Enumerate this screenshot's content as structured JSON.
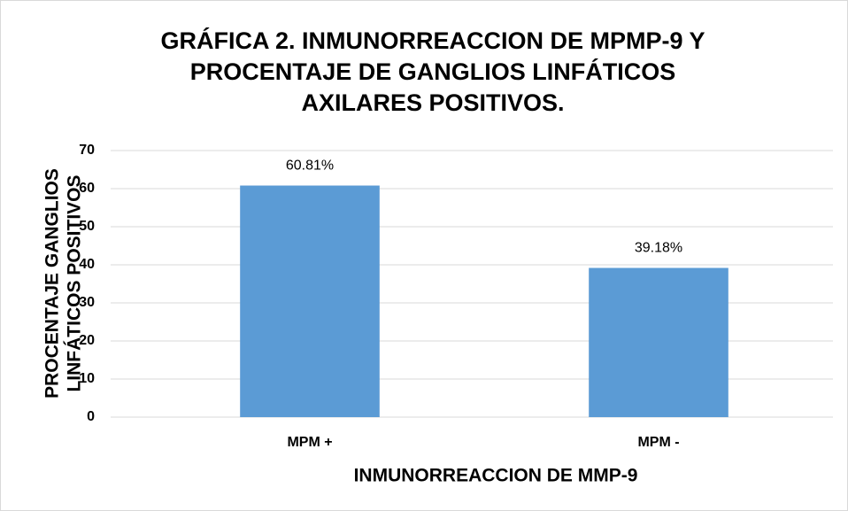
{
  "chart_data": {
    "type": "bar",
    "title": [
      "GRÁFICA 2. INMUNORREACCION DE MPMP-9 Y",
      "PROCENTAJE DE GANGLIOS LINFÁTICOS",
      "AXILARES POSITIVOS."
    ],
    "x_label": "INMUNORREACCION DE MMP-9",
    "y_label": [
      "PROCENTAJE GANGLIOS",
      "LINFÁTICOS POSITIVOS"
    ],
    "categories": [
      "MPM +",
      "MPM -"
    ],
    "values": [
      60.81,
      39.18
    ],
    "value_labels": [
      "60.81%",
      "39.18%"
    ],
    "color": "#5b9bd5",
    "ylim": [
      0,
      70
    ],
    "yticks": [
      0,
      10,
      20,
      30,
      40,
      50,
      60,
      70
    ],
    "grid": true
  }
}
